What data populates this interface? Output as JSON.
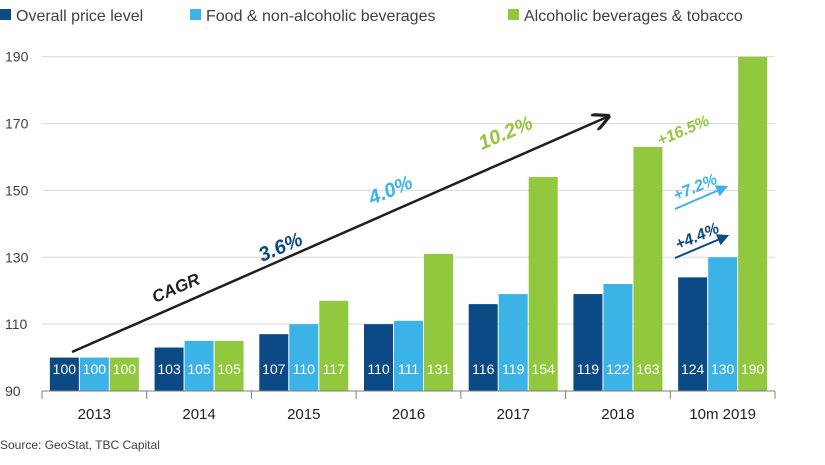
{
  "chart_data": {
    "type": "bar",
    "categories": [
      "2013",
      "2014",
      "2015",
      "2016",
      "2017",
      "2018",
      "10m 2019"
    ],
    "series": [
      {
        "name": "Overall price level",
        "color": "#0b4a85",
        "values": [
          100,
          103,
          107,
          110,
          116,
          119,
          124
        ]
      },
      {
        "name": "Food & non-alcoholic beverages",
        "color": "#3cb3e6",
        "values": [
          100,
          105,
          110,
          111,
          119,
          122,
          130
        ]
      },
      {
        "name": "Alcoholic beverages & tobacco",
        "color": "#92c83e",
        "values": [
          100,
          105,
          117,
          131,
          154,
          163,
          190
        ]
      }
    ],
    "ylim": [
      90,
      195
    ],
    "yticks": [
      90,
      110,
      130,
      150,
      170,
      190
    ],
    "annotations": {
      "cagr_label": "CAGR",
      "cagr_overall": "3.6%",
      "cagr_food": "4.0%",
      "cagr_alcohol": "10.2%",
      "yoy_alcohol": "+16.5%",
      "yoy_food": "+7.2%",
      "yoy_overall": "+4.4%"
    },
    "source": "Source: GeoStat, TBC Capital"
  }
}
